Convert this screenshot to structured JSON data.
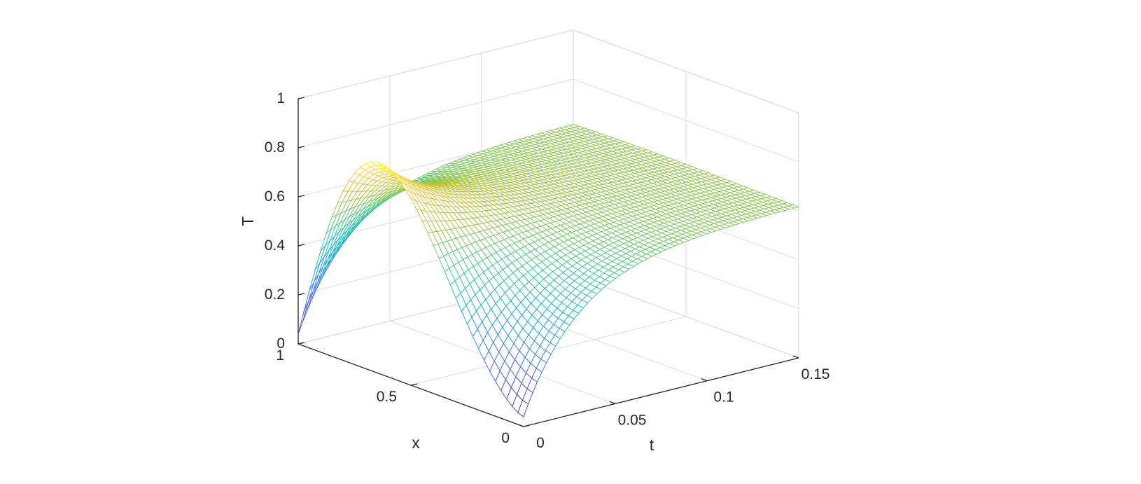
{
  "chart_data": {
    "type": "surface",
    "style": "mesh",
    "colormap": "parula",
    "zlabel": "T",
    "xlabel": "x",
    "tlabel": "t",
    "x_ticks": [
      {
        "value": 0,
        "label": "0"
      },
      {
        "value": 0.5,
        "label": "0.5"
      },
      {
        "value": 1,
        "label": "1"
      }
    ],
    "t_ticks": [
      {
        "value": 0,
        "label": "0"
      },
      {
        "value": 0.05,
        "label": "0.05"
      },
      {
        "value": 0.1,
        "label": "0.1"
      },
      {
        "value": 0.15,
        "label": "0.15"
      }
    ],
    "z_ticks": [
      {
        "value": 0,
        "label": "0"
      },
      {
        "value": 0.2,
        "label": "0.2"
      },
      {
        "value": 0.4,
        "label": "0.4"
      },
      {
        "value": 0.6,
        "label": "0.6"
      },
      {
        "value": 0.8,
        "label": "0.8"
      },
      {
        "value": 1,
        "label": "1"
      }
    ],
    "x_range": [
      0,
      1
    ],
    "t_range": [
      0,
      0.15
    ],
    "z_range": [
      0,
      1
    ],
    "grid": true,
    "surface_samples": [
      {
        "x": 0,
        "t": 0,
        "T": 0.03
      },
      {
        "x": 0.75,
        "t": 0,
        "T": 0.82
      },
      {
        "x": 1,
        "t": 0,
        "T": 0.06
      },
      {
        "x": 0,
        "t": 0.05,
        "T": 0.45
      },
      {
        "x": 1,
        "t": 0.05,
        "T": 0.45
      },
      {
        "x": 0,
        "t": 0.15,
        "T": 0.62
      },
      {
        "x": 1,
        "t": 0.15,
        "T": 0.62
      }
    ],
    "x_mesh_lines": 41,
    "t_mesh_lines": 61
  }
}
